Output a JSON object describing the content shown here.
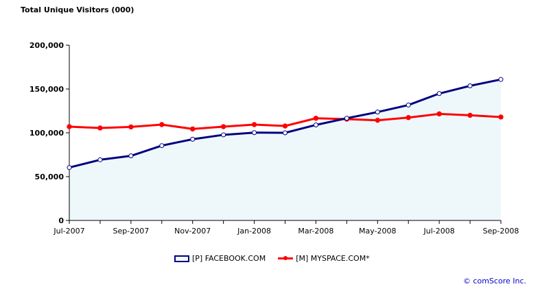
{
  "chart_data": {
    "type": "line",
    "title": "Total Unique Visitors (000)",
    "xlabel": "",
    "ylabel": "",
    "ylim": [
      0,
      200000
    ],
    "yticks": [
      "0",
      "50,000",
      "100,000",
      "150,000",
      "200,000"
    ],
    "ytick_values": [
      0,
      50000,
      100000,
      150000,
      200000
    ],
    "x": [
      "Jul-2007",
      "Aug-2007",
      "Sep-2007",
      "Oct-2007",
      "Nov-2007",
      "Dec-2007",
      "Jan-2008",
      "Feb-2008",
      "Mar-2008",
      "Apr-2008",
      "May-2008",
      "Jun-2008",
      "Jul-2008",
      "Aug-2008",
      "Sep-2008"
    ],
    "xtick_labels": [
      "Jul-2007",
      "Sep-2007",
      "Nov-2007",
      "Jan-2008",
      "Mar-2008",
      "May-2008",
      "Jul-2008",
      "Sep-2008"
    ],
    "grid": false,
    "legend_position": "bottom-center",
    "series": [
      {
        "name": "[P] FACEBOOK.COM",
        "color": "#000080",
        "fill": "#eef8fb",
        "values": [
          60400,
          69200,
          73700,
          85400,
          92700,
          97700,
          100200,
          100000,
          109000,
          116600,
          123700,
          131700,
          144800,
          153600,
          160900
        ]
      },
      {
        "name": "[M] MYSPACE.COM*",
        "color": "#ff0000",
        "values": [
          107000,
          105500,
          106700,
          109400,
          104400,
          107000,
          109400,
          107800,
          116600,
          115600,
          114300,
          117400,
          121600,
          120000,
          118000
        ]
      }
    ]
  },
  "copyright": "© comScore Inc."
}
